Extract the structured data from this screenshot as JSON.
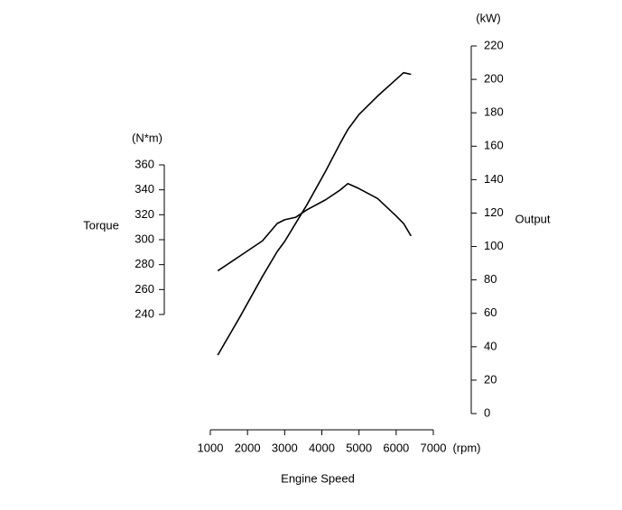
{
  "chart_data": {
    "type": "line",
    "xlabel": "Engine Speed",
    "xunit": "(rpm)",
    "ylabel": "Torque",
    "yunit": "(N*m)",
    "y2label": "Output",
    "y2unit": "(kW)",
    "x": [
      1200,
      1800,
      2400,
      2800,
      3000,
      3300,
      3600,
      4100,
      4500,
      4700,
      5000,
      5500,
      6000,
      6200,
      6400
    ],
    "xlim": [
      1000,
      7000
    ],
    "xticks": [
      1000,
      2000,
      3000,
      4000,
      5000,
      6000,
      7000
    ],
    "ylim": [
      240,
      360
    ],
    "yticks": [
      240,
      260,
      280,
      300,
      320,
      340,
      360
    ],
    "y2lim": [
      0,
      220
    ],
    "y2ticks": [
      0,
      20,
      40,
      60,
      80,
      100,
      120,
      140,
      160,
      180,
      200,
      220
    ],
    "series": [
      {
        "color": "#000000",
        "axis": "y",
        "values": [
          275,
          287,
          299,
          313,
          316,
          318,
          324,
          332,
          340,
          345,
          341,
          333,
          319,
          313,
          303
        ]
      },
      {
        "color": "#000000",
        "axis": "y2",
        "values": [
          35,
          58,
          82,
          97,
          103,
          114,
          125,
          145,
          162,
          170,
          179,
          190,
          200,
          204,
          203
        ]
      }
    ]
  }
}
